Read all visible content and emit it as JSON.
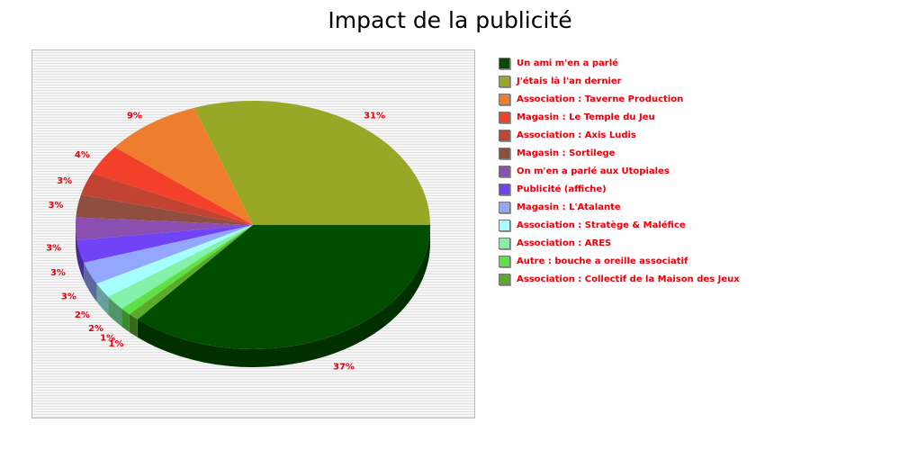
{
  "chart_data": {
    "type": "pie",
    "title": "Impact de la publicité",
    "legend_position": "right",
    "style": "3d",
    "slices": [
      {
        "label": "Un ami m'en a parlé",
        "value": 37,
        "display": "37%",
        "color": "#004d00"
      },
      {
        "label": "J'étais là l'an dernier",
        "value": 31,
        "display": "31%",
        "color": "#98a826"
      },
      {
        "label": "Association : Taverne Production",
        "value": 9,
        "display": "9%",
        "color": "#ee7e2d"
      },
      {
        "label": "Magasin : Le Temple du Jeu",
        "value": 4,
        "display": "4%",
        "color": "#f2402a"
      },
      {
        "label": "Association : Axis Ludis",
        "value": 3,
        "display": "3%",
        "color": "#c24332"
      },
      {
        "label": "Magasin : Sortilege",
        "value": 3,
        "display": "3%",
        "color": "#8f4e3f"
      },
      {
        "label": "On m'en a parlé aux Utopiales",
        "value": 3,
        "display": "3%",
        "color": "#8a4fb0"
      },
      {
        "label": "Publicité (affiche)",
        "value": 3,
        "display": "3%",
        "color": "#7043f7"
      },
      {
        "label": "Magasin : L'Atalante",
        "value": 3,
        "display": "3%",
        "color": "#93a7ff"
      },
      {
        "label": "Association : Stratège & Maléfice",
        "value": 2,
        "display": "2%",
        "color": "#a6ffff"
      },
      {
        "label": "Association : ARES",
        "value": 2,
        "display": "2%",
        "color": "#81f2a8"
      },
      {
        "label": "Autre : bouche a oreille associatif",
        "value": 1,
        "display": "1%",
        "color": "#5fe044"
      },
      {
        "label": "Association : Collectif de la Maison des Jeux",
        "value": 1,
        "display": "1%",
        "color": "#5bab2a"
      }
    ]
  }
}
